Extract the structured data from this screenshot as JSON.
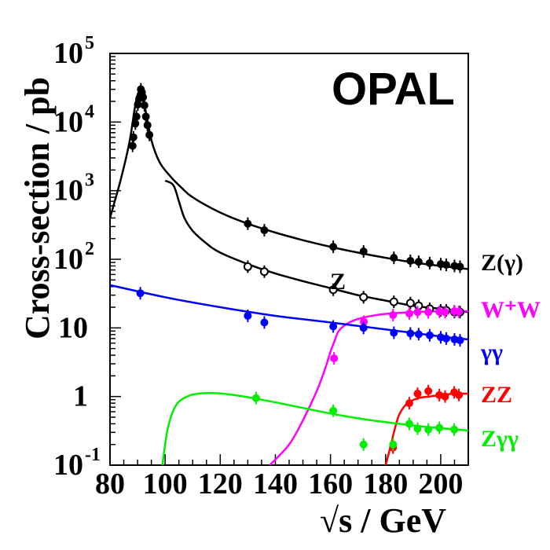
{
  "chart_data": {
    "type": "line",
    "title": "OPAL",
    "xlabel": "√s / GeV",
    "ylabel": "Cross-section / pb",
    "y_scale": "log",
    "xlim": [
      80,
      210
    ],
    "ylim": [
      0.1,
      100000
    ],
    "x_ticks": [
      {
        "value": 80,
        "label": "80"
      },
      {
        "value": 100,
        "label": "100"
      },
      {
        "value": 120,
        "label": "120"
      },
      {
        "value": 140,
        "label": "140"
      },
      {
        "value": 160,
        "label": "160"
      },
      {
        "value": 180,
        "label": "180"
      },
      {
        "value": 200,
        "label": "200"
      }
    ],
    "y_ticks": [
      {
        "value": 0.1,
        "base": "10",
        "exp": "-1",
        "label": "10⁻¹"
      },
      {
        "value": 1,
        "base": "1",
        "exp": "",
        "label": "1"
      },
      {
        "value": 10,
        "base": "10",
        "exp": "",
        "label": "10"
      },
      {
        "value": 100,
        "base": "10",
        "exp": "2",
        "label": "10²"
      },
      {
        "value": 1000,
        "base": "10",
        "exp": "3",
        "label": "10³"
      },
      {
        "value": 10000,
        "base": "10",
        "exp": "4",
        "label": "10⁴"
      },
      {
        "value": 100000,
        "base": "10",
        "exp": "5",
        "label": "10⁵"
      }
    ],
    "grid": false,
    "legend": "right",
    "inline_labels": [
      {
        "text": "Z",
        "x": 161,
        "y": 50
      }
    ],
    "series": [
      {
        "name": "Z(γ)",
        "legend_html": "Z(γ)",
        "color": "#000000",
        "marker": "filled-circle",
        "curve": [
          [
            80,
            400
          ],
          [
            84,
            1500
          ],
          [
            87,
            5000
          ],
          [
            89,
            16000
          ],
          [
            90,
            25000
          ],
          [
            91.2,
            30500
          ],
          [
            92,
            24000
          ],
          [
            93,
            14000
          ],
          [
            95,
            5500
          ],
          [
            98,
            2600
          ],
          [
            102,
            1600
          ],
          [
            106,
            1100
          ],
          [
            110,
            800
          ],
          [
            120,
            480
          ],
          [
            130,
            330
          ],
          [
            140,
            245
          ],
          [
            150,
            190
          ],
          [
            160,
            152
          ],
          [
            170,
            125
          ],
          [
            180,
            105
          ],
          [
            190,
            90
          ],
          [
            200,
            80
          ],
          [
            210,
            72
          ]
        ],
        "points": [
          [
            88.2,
            4500
          ],
          [
            88.5,
            6000
          ],
          [
            89.2,
            9500
          ],
          [
            89.6,
            12000
          ],
          [
            90.1,
            18000
          ],
          [
            90.6,
            22000
          ],
          [
            91.2,
            30000
          ],
          [
            91.6,
            27000
          ],
          [
            92.0,
            23000
          ],
          [
            92.5,
            17500
          ],
          [
            93.0,
            12000
          ],
          [
            93.6,
            9000
          ],
          [
            94.3,
            6500
          ],
          [
            130,
            330
          ],
          [
            136,
            265
          ],
          [
            161,
            152
          ],
          [
            172,
            130
          ],
          [
            183,
            105
          ],
          [
            189,
            95
          ],
          [
            192,
            92
          ],
          [
            196,
            88
          ],
          [
            200,
            85
          ],
          [
            202,
            83
          ],
          [
            205,
            80
          ],
          [
            207,
            78
          ]
        ]
      },
      {
        "name": "Z",
        "color": "#000000",
        "marker": "open-circle",
        "curve": [
          [
            100,
            1400
          ],
          [
            103,
            1200
          ],
          [
            105,
            700
          ],
          [
            107,
            400
          ],
          [
            110,
            260
          ],
          [
            115,
            170
          ],
          [
            120,
            125
          ],
          [
            130,
            85
          ],
          [
            140,
            62
          ],
          [
            150,
            48
          ],
          [
            160,
            38
          ],
          [
            170,
            30
          ],
          [
            180,
            25
          ],
          [
            190,
            21
          ],
          [
            200,
            19
          ],
          [
            210,
            17
          ]
        ],
        "points": [
          [
            130,
            78
          ],
          [
            136,
            66
          ],
          [
            161,
            36
          ],
          [
            172,
            28
          ],
          [
            183,
            24
          ],
          [
            189,
            23
          ],
          [
            192,
            21
          ],
          [
            196,
            19
          ],
          [
            200,
            18
          ],
          [
            202,
            18
          ],
          [
            205,
            17
          ],
          [
            207,
            17
          ]
        ]
      },
      {
        "name": "W⁺W⁻",
        "legend_html": "W⁺W",
        "color": "#ff00ff",
        "marker": "filled-circle",
        "curve": [
          [
            138,
            0.1
          ],
          [
            145,
            0.2
          ],
          [
            150,
            0.45
          ],
          [
            155,
            1.2
          ],
          [
            158,
            2.5
          ],
          [
            160,
            4.5
          ],
          [
            161.5,
            6.5
          ],
          [
            163,
            9
          ],
          [
            166,
            11.5
          ],
          [
            170,
            13.5
          ],
          [
            175,
            15
          ],
          [
            180,
            16
          ],
          [
            190,
            17
          ],
          [
            200,
            17.5
          ],
          [
            210,
            17.5
          ]
        ],
        "points": [
          [
            161.3,
            3.6
          ],
          [
            172.1,
            12.3
          ],
          [
            182.7,
            15.4
          ],
          [
            188.6,
            16.2
          ],
          [
            191.6,
            17.0
          ],
          [
            195.5,
            16.9
          ],
          [
            199.5,
            17.2
          ],
          [
            201.6,
            17.0
          ],
          [
            204.9,
            17.5
          ],
          [
            206.6,
            17.2
          ]
        ]
      },
      {
        "name": "γγ",
        "legend_html": "γγ",
        "color": "#0000ff",
        "marker": "filled-circle",
        "curve": [
          [
            80,
            42
          ],
          [
            100,
            28
          ],
          [
            120,
            20
          ],
          [
            140,
            15
          ],
          [
            160,
            12
          ],
          [
            180,
            9.5
          ],
          [
            200,
            7.5
          ],
          [
            210,
            6.8
          ]
        ],
        "points": [
          [
            91,
            32
          ],
          [
            130,
            15
          ],
          [
            136,
            12
          ],
          [
            161,
            10.5
          ],
          [
            172,
            10
          ],
          [
            183,
            8.5
          ],
          [
            189,
            8.3
          ],
          [
            192,
            8.1
          ],
          [
            196,
            7.8
          ],
          [
            200,
            7.3
          ],
          [
            202,
            7.0
          ],
          [
            205,
            6.8
          ],
          [
            207,
            6.6
          ]
        ]
      },
      {
        "name": "ZZ",
        "legend_html": "ZZ",
        "color": "#ff0000",
        "marker": "filled-circle",
        "curve": [
          [
            180,
            0.1
          ],
          [
            182,
            0.2
          ],
          [
            183,
            0.3
          ],
          [
            185,
            0.55
          ],
          [
            188,
            0.8
          ],
          [
            192,
            0.95
          ],
          [
            196,
            1.0
          ],
          [
            200,
            1.05
          ],
          [
            205,
            1.1
          ],
          [
            210,
            1.1
          ]
        ],
        "points": [
          [
            182.7,
            0.18
          ],
          [
            188.6,
            0.8
          ],
          [
            191.6,
            1.1
          ],
          [
            195.5,
            1.2
          ],
          [
            199.5,
            1.05
          ],
          [
            201.6,
            1.0
          ],
          [
            204.9,
            1.15
          ],
          [
            206.6,
            1.05
          ]
        ]
      },
      {
        "name": "Zγγ",
        "legend_html": "Zγγ",
        "color": "#00ee00",
        "marker": "filled-circle",
        "curve": [
          [
            99,
            0.1
          ],
          [
            101,
            0.35
          ],
          [
            104,
            0.75
          ],
          [
            108,
            1.0
          ],
          [
            112,
            1.1
          ],
          [
            118,
            1.12
          ],
          [
            125,
            1.05
          ],
          [
            135,
            0.9
          ],
          [
            145,
            0.75
          ],
          [
            155,
            0.62
          ],
          [
            165,
            0.52
          ],
          [
            175,
            0.45
          ],
          [
            185,
            0.4
          ],
          [
            195,
            0.36
          ],
          [
            210,
            0.32
          ]
        ],
        "points": [
          [
            133,
            0.95
          ],
          [
            161,
            0.62
          ],
          [
            172,
            0.2
          ],
          [
            182.7,
            0.2
          ],
          [
            188.6,
            0.4
          ],
          [
            191.6,
            0.34
          ],
          [
            195.5,
            0.33
          ],
          [
            199.5,
            0.35
          ],
          [
            204.9,
            0.33
          ]
        ]
      }
    ]
  }
}
